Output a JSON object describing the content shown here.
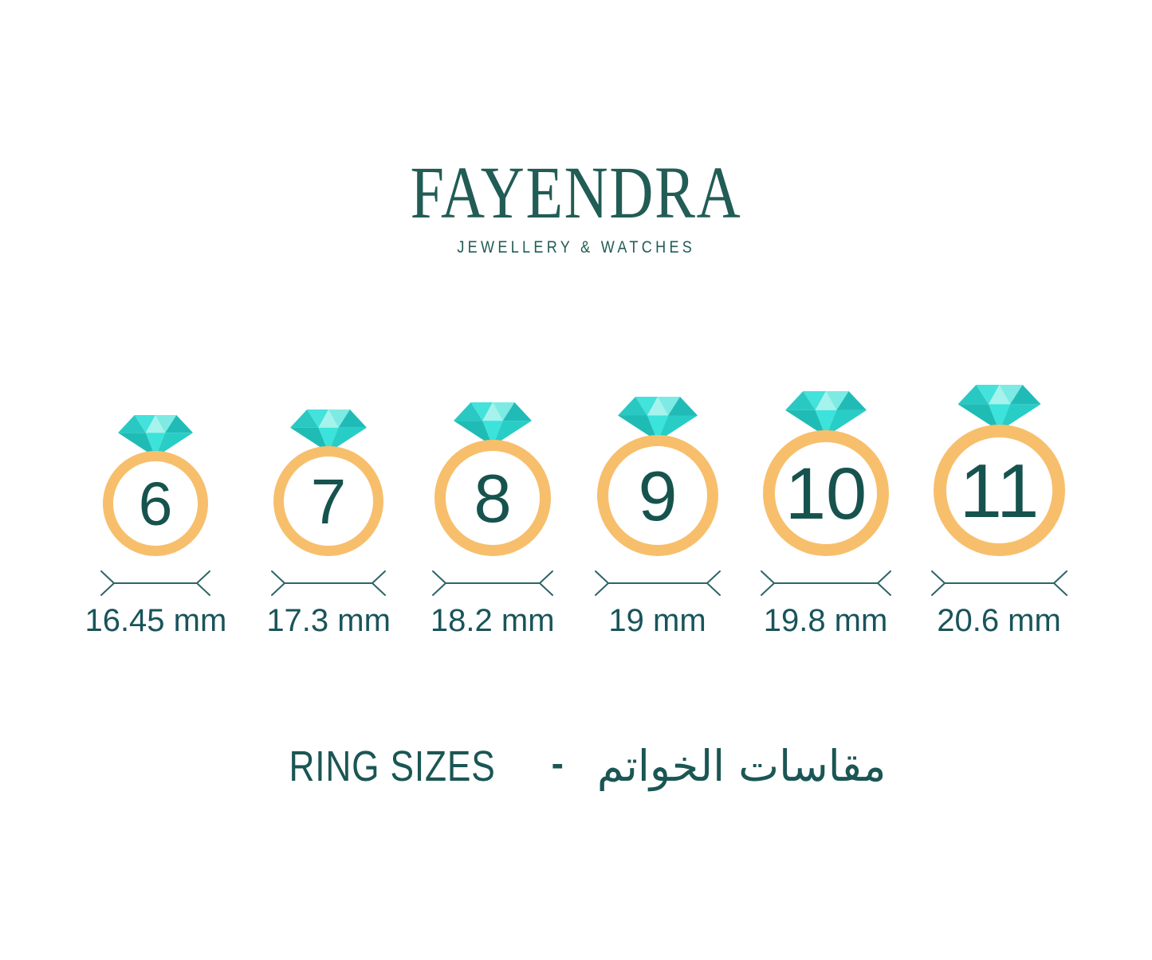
{
  "brand": {
    "name": "FAYENDRA",
    "tagline": "JEWELLERY & WATCHES"
  },
  "chart": {
    "description": "ring size chart",
    "rings": [
      {
        "size": "6",
        "label": "16.45 mm",
        "mm": 16.45
      },
      {
        "size": "7",
        "label": "17.3 mm",
        "mm": 17.3
      },
      {
        "size": "8",
        "label": "18.2 mm",
        "mm": 18.2
      },
      {
        "size": "9",
        "label": "19 mm",
        "mm": 19
      },
      {
        "size": "10",
        "label": "19.8 mm",
        "mm": 19.8
      },
      {
        "size": "11",
        "label": "20.6 mm",
        "mm": 20.6
      }
    ]
  },
  "footer": {
    "title_en": "RING SIZES",
    "separator": "-",
    "title_ar": "مقاسات الخواتم"
  },
  "colors": {
    "logo_teal": "#215C55",
    "number_teal": "#17534E",
    "label_teal": "#19545A",
    "arrow_teal": "#2E6468",
    "band_gold": "#F7BF6C",
    "diamond": {
      "crown_left": "#2AC8C3",
      "crown_bright": "#43E2DB",
      "crown_pale": "#A6F2EC",
      "crown_light": "#7DEBE3",
      "crown_dark": "#21BBB7",
      "pav_left": "#1FBCB6",
      "pav_center": "#3BE3DB",
      "pav_right": "#28CDC6"
    }
  }
}
